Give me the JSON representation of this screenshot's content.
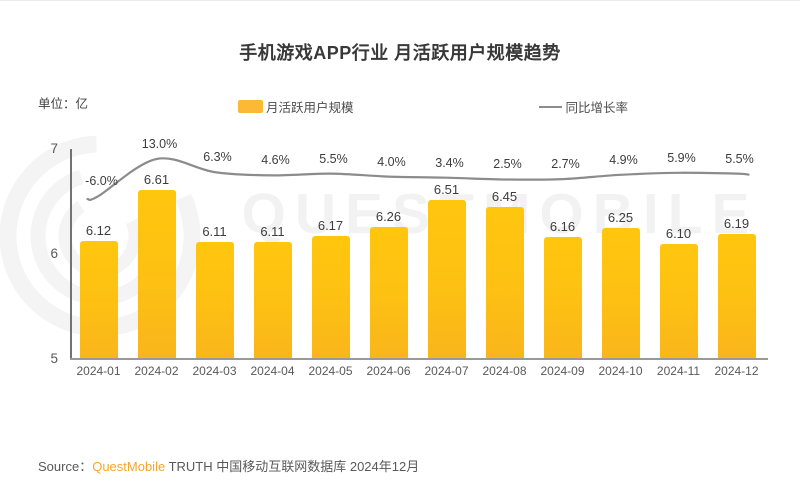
{
  "title": "手机游戏APP行业 月活跃用户规模趋势",
  "unit_label": "单位：亿",
  "legend": {
    "bar_label": "月活跃用户规模",
    "line_label": "同比增长率"
  },
  "source": {
    "prefix": "Source：",
    "brand": "QuestMobile",
    "rest": " TRUTH 中国移动互联网数据库 2024年12月"
  },
  "watermark_text": "QUESTMOBILE",
  "colors": {
    "bar_top": "#FFC60E",
    "bar_bottom": "#F9B51C",
    "legend_swatch": "#FBB936",
    "line": "#8C8C8C",
    "brand_orange": "#F6A62A",
    "value_text": "#3d3d3d",
    "axis_text": "#595959"
  },
  "chart_data": {
    "type": "bar",
    "title": "手机游戏APP行业 月活跃用户规模趋势",
    "unit": "亿",
    "categories": [
      "2024-01",
      "2024-02",
      "2024-03",
      "2024-04",
      "2024-05",
      "2024-06",
      "2024-07",
      "2024-08",
      "2024-09",
      "2024-10",
      "2024-11",
      "2024-12"
    ],
    "series": [
      {
        "name": "月活跃用户规模",
        "type": "bar",
        "values": [
          6.12,
          6.61,
          6.11,
          6.11,
          6.17,
          6.26,
          6.51,
          6.45,
          6.16,
          6.25,
          6.1,
          6.19
        ],
        "value_labels": [
          "6.12",
          "6.61",
          "6.11",
          "6.11",
          "6.17",
          "6.26",
          "6.51",
          "6.45",
          "6.16",
          "6.25",
          "6.10",
          "6.19"
        ]
      },
      {
        "name": "同比增长率",
        "type": "line",
        "values": [
          -6.0,
          13.0,
          6.3,
          4.6,
          5.5,
          4.0,
          3.4,
          2.5,
          2.7,
          4.9,
          5.9,
          5.5
        ],
        "value_labels": [
          "-6.0%",
          "13.0%",
          "6.3%",
          "4.6%",
          "5.5%",
          "4.0%",
          "3.4%",
          "2.5%",
          "2.7%",
          "4.9%",
          "5.9%",
          "5.5%"
        ]
      }
    ],
    "y_axis": {
      "ticks": [
        "5",
        "6",
        "7"
      ],
      "min": 5,
      "max": 7
    },
    "grid": false,
    "legend_position": "top"
  }
}
